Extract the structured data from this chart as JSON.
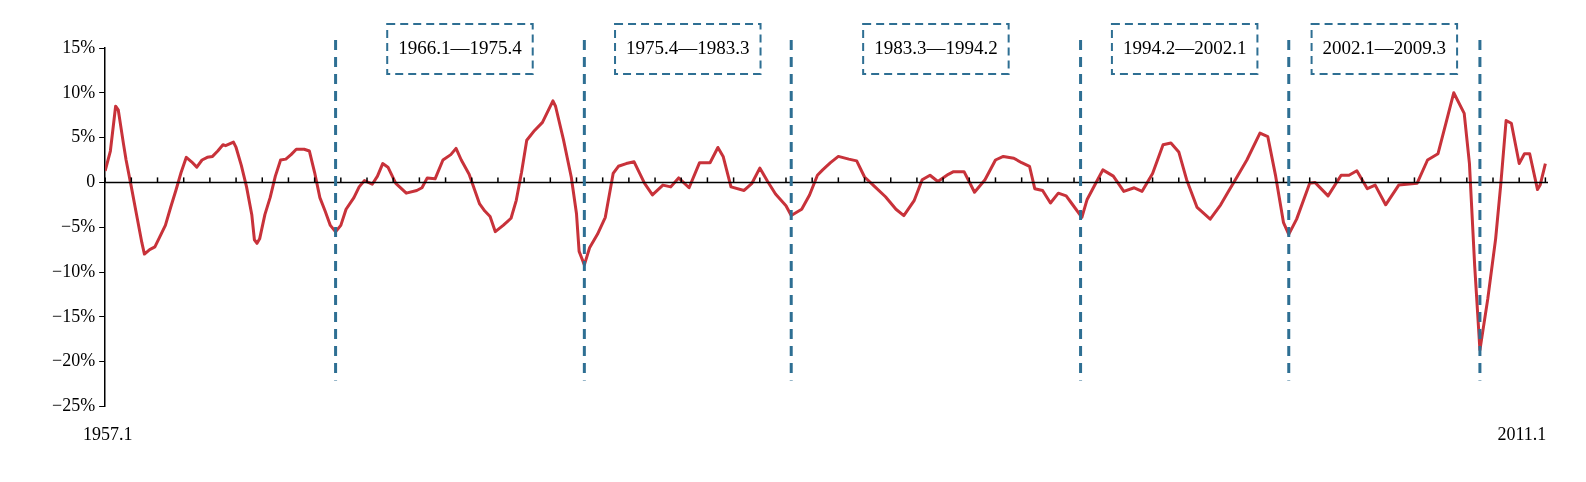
{
  "chart_data": {
    "type": "line",
    "grid": false,
    "legend": false,
    "marker": "none",
    "line_style": "solid",
    "xlim": [
      1957,
      2012.1
    ],
    "xticks": [
      1957.1,
      2011.1
    ],
    "ylim": [
      -25,
      15
    ],
    "yticks": [
      {
        "value": -25,
        "label": "−25%"
      },
      {
        "value": -20,
        "label": "−20%"
      },
      {
        "value": -15,
        "label": "−15%"
      },
      {
        "value": -10,
        "label": "−10%"
      },
      {
        "value": -5,
        "label": "−5%"
      },
      {
        "value": 0,
        "label": "0"
      },
      {
        "value": 5,
        "label": "5%"
      },
      {
        "value": 10,
        "label": "10%"
      },
      {
        "value": 15,
        "label": "15%"
      }
    ],
    "ref_lines": [
      {
        "axis": "y",
        "value": 0,
        "color": "#000000",
        "line_style": "solid"
      },
      {
        "axis": "x",
        "value": 1965.8,
        "color": "#2e6f93",
        "line_style": "dashed"
      },
      {
        "axis": "x",
        "value": 1975.3,
        "color": "#2e6f93",
        "line_style": "dashed"
      },
      {
        "axis": "x",
        "value": 1983.2,
        "color": "#2e6f93",
        "line_style": "dashed"
      },
      {
        "axis": "x",
        "value": 1994.25,
        "color": "#2e6f93",
        "line_style": "dashed"
      },
      {
        "axis": "x",
        "value": 2002.2,
        "color": "#2e6f93",
        "line_style": "dashed"
      },
      {
        "axis": "x",
        "value": 2009.5,
        "color": "#2e6f93",
        "line_style": "dashed"
      }
    ],
    "annotations": [
      "1966.1—1975.4",
      "1975.4—1983.3",
      "1983.3—1994.2",
      "1994.2—2002.1",
      "2002.1—2009.3"
    ],
    "series": [
      {
        "color": "#c8323a",
        "x": [
          1957.0,
          1957.2,
          1957.4,
          1957.5,
          1957.7,
          1957.8,
          1958.0,
          1958.2,
          1958.4,
          1958.5,
          1958.7,
          1958.9,
          1959.1,
          1959.3,
          1959.5,
          1959.7,
          1959.9,
          1960.1,
          1960.3,
          1960.5,
          1960.7,
          1960.9,
          1961.1,
          1961.3,
          1961.5,
          1961.6,
          1961.9,
          1962.0,
          1962.2,
          1962.4,
          1962.6,
          1962.7,
          1962.8,
          1962.9,
          1963.1,
          1963.3,
          1963.5,
          1963.7,
          1963.9,
          1964.1,
          1964.3,
          1964.6,
          1964.8,
          1965.0,
          1965.2,
          1965.4,
          1965.6,
          1965.8,
          1966.0,
          1966.2,
          1966.5,
          1966.7,
          1966.9,
          1967.2,
          1967.4,
          1967.6,
          1967.8,
          1968.1,
          1968.5,
          1968.9,
          1969.1,
          1969.3,
          1969.6,
          1969.9,
          1970.2,
          1970.4,
          1970.6,
          1970.9,
          1971.3,
          1971.5,
          1971.7,
          1971.9,
          1972.2,
          1972.5,
          1972.7,
          1972.9,
          1973.1,
          1973.4,
          1973.7,
          1974.1,
          1974.2,
          1974.5,
          1974.8,
          1975.0,
          1975.1,
          1975.3,
          1975.5,
          1975.8,
          1976.1,
          1976.4,
          1976.6,
          1976.9,
          1977.2,
          1977.6,
          1977.9,
          1978.3,
          1978.6,
          1978.9,
          1979.3,
          1979.7,
          1980.1,
          1980.4,
          1980.6,
          1980.9,
          1981.4,
          1981.7,
          1982.0,
          1982.3,
          1982.6,
          1983.0,
          1983.2,
          1983.6,
          1983.9,
          1984.2,
          1984.4,
          1984.7,
          1985.0,
          1985.4,
          1985.7,
          1986.0,
          1986.4,
          1986.8,
          1987.2,
          1987.5,
          1987.9,
          1988.2,
          1988.5,
          1988.8,
          1989.2,
          1989.4,
          1989.8,
          1990.2,
          1990.6,
          1991.0,
          1991.3,
          1991.7,
          1992.0,
          1992.3,
          1992.5,
          1992.8,
          1993.1,
          1993.4,
          1993.7,
          1993.9,
          1994.3,
          1994.5,
          1994.9,
          1995.1,
          1995.5,
          1995.9,
          1996.3,
          1996.6,
          1997.0,
          1997.4,
          1997.7,
          1998.0,
          1998.3,
          1998.7,
          1999.2,
          1999.6,
          1999.9,
          2000.2,
          2000.6,
          2001.1,
          2001.4,
          2001.7,
          2002.0,
          2002.2,
          2002.5,
          2003.0,
          2003.2,
          2003.7,
          2004.2,
          2004.5,
          2004.8,
          2005.2,
          2005.5,
          2005.9,
          2006.4,
          2007.1,
          2007.5,
          2007.9,
          2008.2,
          2008.5,
          2008.9,
          2009.1,
          2009.3,
          2009.5,
          2009.8,
          2010.1,
          2010.3,
          2010.5,
          2010.7,
          2011.0,
          2011.2,
          2011.4,
          2011.7,
          2011.8,
          2012.0
        ],
        "values": [
          1.3,
          3.5,
          8.5,
          8.1,
          4.3,
          2.5,
          -0.5,
          -3.6,
          -6.7,
          -8.0,
          -7.5,
          -7.2,
          -6.0,
          -4.8,
          -2.8,
          -0.9,
          1.1,
          2.8,
          2.3,
          1.7,
          2.5,
          2.8,
          2.9,
          3.5,
          4.2,
          4.1,
          4.5,
          3.9,
          1.9,
          -0.5,
          -3.6,
          -6.4,
          -6.8,
          -6.3,
          -3.6,
          -1.7,
          0.7,
          2.5,
          2.6,
          3.1,
          3.7,
          3.7,
          3.5,
          1.1,
          -1.7,
          -3.2,
          -4.8,
          -5.5,
          -4.8,
          -3.0,
          -1.7,
          -0.5,
          0.2,
          -0.2,
          0.7,
          2.1,
          1.7,
          -0.1,
          -1.2,
          -0.9,
          -0.6,
          0.5,
          0.4,
          2.5,
          3.1,
          3.8,
          2.5,
          0.9,
          -2.4,
          -3.2,
          -3.8,
          -5.5,
          -4.8,
          -4.0,
          -2.0,
          1.1,
          4.7,
          5.8,
          6.7,
          9.1,
          8.5,
          4.8,
          0.6,
          -3.5,
          -7.7,
          -9.2,
          -7.3,
          -5.8,
          -3.9,
          1.0,
          1.8,
          2.1,
          2.3,
          -0.1,
          -1.4,
          -0.3,
          -0.5,
          0.5,
          -0.6,
          2.2,
          2.2,
          3.9,
          2.9,
          -0.5,
          -0.9,
          -0.1,
          1.6,
          0.1,
          -1.3,
          -2.6,
          -3.7,
          -3.0,
          -1.4,
          0.8,
          1.4,
          2.2,
          2.9,
          2.6,
          2.4,
          0.6,
          -0.5,
          -1.6,
          -3.0,
          -3.7,
          -2.0,
          0.3,
          0.8,
          0.1,
          0.9,
          1.2,
          1.2,
          -1.1,
          0.3,
          2.5,
          2.9,
          2.7,
          2.2,
          1.8,
          -0.7,
          -0.9,
          -2.3,
          -1.2,
          -1.5,
          -2.3,
          -3.9,
          -1.9,
          0.3,
          1.4,
          0.7,
          -1.0,
          -0.6,
          -1.0,
          1.0,
          4.2,
          4.4,
          3.4,
          0.3,
          -2.8,
          -4.1,
          -2.5,
          -1.0,
          0.5,
          2.5,
          5.5,
          5.1,
          0.7,
          -4.5,
          -5.8,
          -4.1,
          -0.1,
          0.0,
          -1.5,
          0.8,
          0.8,
          1.3,
          -0.7,
          -0.3,
          -2.5,
          -0.3,
          -0.1,
          2.5,
          3.2,
          6.6,
          10.0,
          7.7,
          2.1,
          -9.3,
          -18.7,
          -13.0,
          -6.3,
          -0.1,
          6.9,
          6.6,
          2.1,
          3.2,
          3.2,
          -0.8,
          -0.3,
          2.1
        ]
      }
    ]
  }
}
